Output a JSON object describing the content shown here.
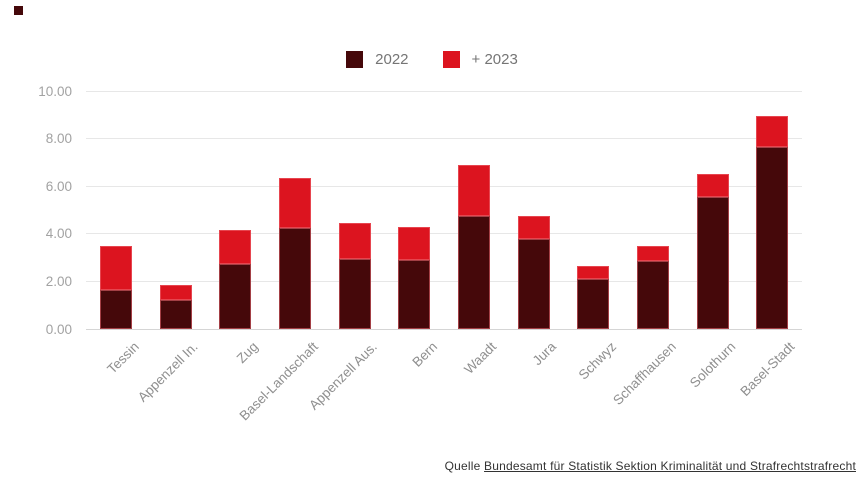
{
  "brand_mark": {
    "color": "#45080a"
  },
  "legend": {
    "items": [
      {
        "label": "2022",
        "color": "#45080a"
      },
      {
        "label": "+ 2023",
        "color": "#dc141f"
      }
    ]
  },
  "chart_data": {
    "type": "bar",
    "stacked": true,
    "title": "",
    "xlabel": "",
    "ylabel": "",
    "categories": [
      "Tessin",
      "Appenzell In.",
      "Zug",
      "Basel-Landschaft",
      "Appenzell Aus.",
      "Bern",
      "Waadt",
      "Jura",
      "Schwyz",
      "Schaffhausen",
      "Solothurn",
      "Basel-Stadt"
    ],
    "series": [
      {
        "name": "2022",
        "color": "#45080a",
        "values": [
          1.65,
          1.2,
          2.75,
          4.25,
          2.95,
          2.9,
          4.75,
          3.8,
          2.1,
          2.85,
          5.55,
          7.65
        ]
      },
      {
        "name": "+ 2023",
        "color": "#dc141f",
        "values": [
          1.85,
          0.65,
          1.4,
          2.1,
          1.5,
          1.4,
          2.15,
          0.95,
          0.55,
          0.65,
          0.95,
          1.3
        ]
      }
    ],
    "ylim": [
      0,
      10
    ],
    "y_ticks": [
      "10.00",
      "8.00",
      "6.00",
      "4.00",
      "2.00",
      "0.00"
    ],
    "grid": true,
    "legend_position": "top"
  },
  "source": {
    "prefix": "Quelle ",
    "link": "Bundesamt für Statistik Sektion Kriminalität und Strafrechtstrafrecht"
  }
}
